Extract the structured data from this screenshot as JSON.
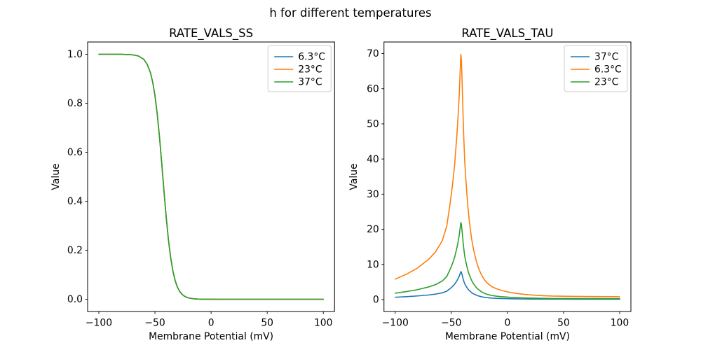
{
  "figure": {
    "suptitle": "h for different temperatures",
    "background": "#ffffff",
    "text_color": "#000000",
    "spine_color": "#000000"
  },
  "chart_data": [
    {
      "type": "line",
      "title": "RATE_VALS_SS",
      "xlabel": "Membrane Potential (mV)",
      "ylabel": "Value",
      "grid": false,
      "legend_position": "upper right",
      "xlim": [
        -110,
        110
      ],
      "ylim": [
        -0.05,
        1.05
      ],
      "xticks": [
        -100,
        -50,
        0,
        50,
        100
      ],
      "xtick_labels": [
        "−100",
        "−50",
        "0",
        "50",
        "100"
      ],
      "yticks": [
        0.0,
        0.2,
        0.4,
        0.6,
        0.8,
        1.0
      ],
      "ytick_labels": [
        "0.0",
        "0.2",
        "0.4",
        "0.6",
        "0.8",
        "1.0"
      ],
      "x": [
        -100,
        -90,
        -80,
        -70,
        -65,
        -60,
        -57,
        -54,
        -52,
        -50,
        -48,
        -46,
        -44,
        -43,
        -42,
        -40,
        -38,
        -36,
        -34,
        -32,
        -30,
        -28,
        -26,
        -24,
        -22,
        -20,
        -16,
        -12,
        -8,
        0,
        10,
        20,
        30,
        40,
        50,
        60,
        70,
        80,
        90,
        100
      ],
      "series": [
        {
          "name": "6.3°C",
          "color": "#1f77b4",
          "values": [
            1,
            1,
            0.9998,
            0.9978,
            0.9933,
            0.9794,
            0.9594,
            0.9243,
            0.8854,
            0.8307,
            0.7569,
            0.6642,
            0.5565,
            0.5,
            0.4435,
            0.3358,
            0.2431,
            0.1693,
            0.1145,
            0.0759,
            0.0495,
            0.032,
            0.0206,
            0.0132,
            0.0084,
            0.0053,
            0.0021,
            0.0008,
            0.0003,
            0.0001,
            0,
            0,
            0,
            0,
            0,
            0,
            0,
            0,
            0,
            0
          ]
        },
        {
          "name": "23°C",
          "color": "#ff7f0e",
          "values": [
            1,
            1,
            0.9998,
            0.9978,
            0.9933,
            0.9794,
            0.9594,
            0.9243,
            0.8854,
            0.8307,
            0.7569,
            0.6642,
            0.5565,
            0.5,
            0.4435,
            0.3358,
            0.2431,
            0.1693,
            0.1145,
            0.0759,
            0.0495,
            0.032,
            0.0206,
            0.0132,
            0.0084,
            0.0053,
            0.0021,
            0.0008,
            0.0003,
            0.0001,
            0,
            0,
            0,
            0,
            0,
            0,
            0,
            0,
            0,
            0
          ]
        },
        {
          "name": "37°C",
          "color": "#2ca02c",
          "values": [
            1,
            1,
            0.9998,
            0.9978,
            0.9933,
            0.9794,
            0.9594,
            0.9243,
            0.8854,
            0.8307,
            0.7569,
            0.6642,
            0.5565,
            0.5,
            0.4435,
            0.3358,
            0.2431,
            0.1693,
            0.1145,
            0.0759,
            0.0495,
            0.032,
            0.0206,
            0.0132,
            0.0084,
            0.0053,
            0.0021,
            0.0008,
            0.0003,
            0.0001,
            0,
            0,
            0,
            0,
            0,
            0,
            0,
            0,
            0,
            0
          ]
        }
      ]
    },
    {
      "type": "line",
      "title": "RATE_VALS_TAU",
      "xlabel": "Membrane Potential (mV)",
      "ylabel": "Value",
      "grid": false,
      "legend_position": "upper right",
      "xlim": [
        -110,
        110
      ],
      "ylim": [
        -3.4,
        73.3
      ],
      "xticks": [
        -100,
        -50,
        0,
        50,
        100
      ],
      "xtick_labels": [
        "−100",
        "−50",
        "0",
        "50",
        "100"
      ],
      "yticks": [
        0,
        10,
        20,
        30,
        40,
        50,
        60,
        70
      ],
      "ytick_labels": [
        "0",
        "10",
        "20",
        "30",
        "40",
        "50",
        "60",
        "70"
      ],
      "x": [
        -100,
        -90,
        -80,
        -70,
        -64,
        -58,
        -54,
        -51,
        -49,
        -47,
        -45,
        -44,
        -43,
        -42,
        -41.5,
        -41,
        -40.5,
        -40,
        -39.5,
        -39,
        -38.5,
        -38,
        -37,
        -36,
        -35,
        -34,
        -33,
        -32,
        -31,
        -30,
        -29,
        -28,
        -27,
        -26,
        -25,
        -24,
        -23,
        -22,
        -21,
        -20,
        -18,
        -16,
        -14,
        -12,
        -10,
        -8,
        -6,
        -4,
        -2,
        0,
        4,
        8,
        12,
        16,
        20,
        24,
        28,
        32,
        36,
        40,
        50,
        60,
        70,
        80,
        90,
        100
      ],
      "series": [
        {
          "name": "37°C",
          "color": "#1f77b4",
          "values": [
            0.66,
            0.82,
            1.03,
            1.31,
            1.55,
            1.92,
            2.39,
            3.14,
            3.71,
            4.39,
            5.36,
            5.93,
            6.61,
            7.52,
            7.96,
            7.75,
            7.18,
            6.61,
            5.93,
            5.36,
            4.9,
            4.45,
            3.88,
            3.36,
            2.92,
            2.57,
            2.27,
            2.0,
            1.78,
            1.6,
            1.44,
            1.29,
            1.16,
            1.05,
            0.96,
            0.87,
            0.8,
            0.73,
            0.67,
            0.62,
            0.54,
            0.48,
            0.42,
            0.39,
            0.35,
            0.33,
            0.3,
            0.29,
            0.27,
            0.25,
            0.22,
            0.2,
            0.18,
            0.17,
            0.15,
            0.14,
            0.13,
            0.13,
            0.12,
            0.11,
            0.11,
            0.1,
            0.1,
            0.1,
            0.09,
            0.09
          ]
        },
        {
          "name": "6.3°C",
          "color": "#ff7f0e",
          "values": [
            5.8,
            7.2,
            9.0,
            11.5,
            13.6,
            16.8,
            21,
            27.5,
            32.5,
            38.5,
            47,
            52,
            58,
            66,
            69.8,
            68,
            63,
            58,
            52,
            47,
            43,
            39,
            34,
            29.5,
            25.6,
            22.5,
            19.9,
            17.5,
            15.6,
            14,
            12.6,
            11.3,
            10.2,
            9.2,
            8.4,
            7.6,
            7.0,
            6.4,
            5.9,
            5.4,
            4.7,
            4.2,
            3.7,
            3.4,
            3.1,
            2.9,
            2.65,
            2.5,
            2.35,
            2.2,
            1.95,
            1.75,
            1.6,
            1.45,
            1.35,
            1.25,
            1.17,
            1.1,
            1.05,
            1.0,
            0.95,
            0.9,
            0.87,
            0.85,
            0.83,
            0.8
          ]
        },
        {
          "name": "23°C",
          "color": "#2ca02c",
          "values": [
            1.82,
            2.26,
            2.83,
            3.61,
            4.27,
            5.28,
            6.59,
            8.64,
            10.21,
            12.09,
            14.76,
            16.33,
            18.21,
            20.72,
            21.92,
            21.35,
            19.78,
            18.21,
            16.33,
            14.76,
            13.5,
            12.25,
            10.68,
            9.26,
            8.04,
            7.07,
            6.25,
            5.5,
            4.9,
            4.4,
            3.96,
            3.55,
            3.2,
            2.89,
            2.64,
            2.39,
            2.2,
            2.01,
            1.85,
            1.7,
            1.48,
            1.32,
            1.16,
            1.07,
            0.97,
            0.91,
            0.83,
            0.79,
            0.74,
            0.69,
            0.61,
            0.55,
            0.5,
            0.46,
            0.42,
            0.39,
            0.37,
            0.35,
            0.33,
            0.31,
            0.3,
            0.28,
            0.27,
            0.27,
            0.26,
            0.25
          ]
        }
      ]
    }
  ]
}
